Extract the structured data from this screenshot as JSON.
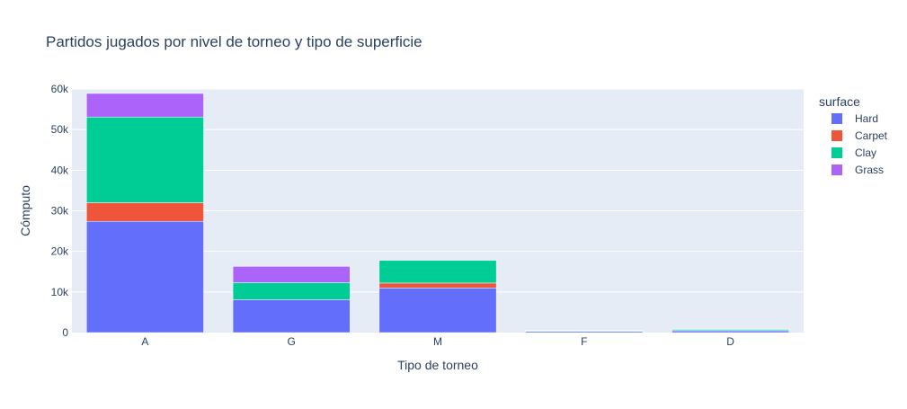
{
  "chart_data": {
    "type": "bar",
    "barmode": "stack",
    "title": "Partidos jugados por nivel de torneo y tipo de superficie",
    "xlabel": "Tipo de torneo",
    "ylabel": "Cómputo",
    "categories": [
      "A",
      "G",
      "M",
      "F",
      "D"
    ],
    "series": [
      {
        "name": "Hard",
        "color": "#636efa",
        "values": [
          27400,
          8100,
          11000,
          300,
          450
        ]
      },
      {
        "name": "Carpet",
        "color": "#ef553b",
        "values": [
          4600,
          0,
          1200,
          50,
          50
        ]
      },
      {
        "name": "Clay",
        "color": "#00cc96",
        "values": [
          21100,
          4200,
          5600,
          150,
          300
        ]
      },
      {
        "name": "Grass",
        "color": "#ab63fa",
        "values": [
          5800,
          4000,
          0,
          80,
          100
        ]
      }
    ],
    "ylim": [
      0,
      60000
    ],
    "yticks": [
      0,
      10000,
      20000,
      30000,
      40000,
      50000,
      60000
    ],
    "ytick_labels": [
      "0",
      "10k",
      "20k",
      "30k",
      "40k",
      "50k",
      "60k"
    ],
    "grid": true,
    "legend": {
      "title": "surface",
      "position": "right"
    },
    "plot_bg": "#e5ecf6",
    "text_color": "#2a3f5f"
  }
}
